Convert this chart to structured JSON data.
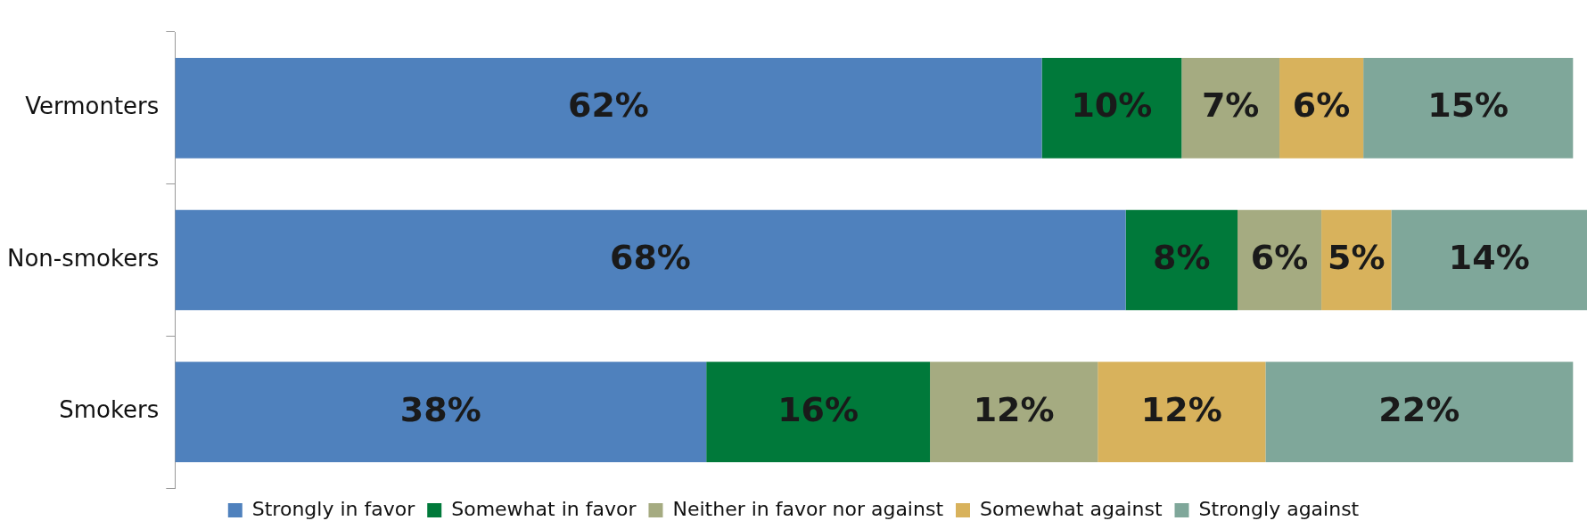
{
  "chart_data": {
    "type": "bar",
    "orientation": "horizontal",
    "stacked": true,
    "legend": "bottom",
    "grid": false,
    "tick_labels": "y",
    "categories": [
      "Vermonters",
      "Non-smokers",
      "Smokers"
    ],
    "series": [
      {
        "name": "Strongly in favor",
        "color": "#4f81bd",
        "values": [
          62,
          68,
          38
        ],
        "value_labels": [
          "62%",
          "68%",
          "38%"
        ]
      },
      {
        "name": "Somewhat in favor",
        "color": "#00793a",
        "values": [
          10,
          8,
          16
        ],
        "value_labels": [
          "10%",
          "8%",
          "16%"
        ]
      },
      {
        "name": "Neither in favor nor against",
        "color": "#a5ab81",
        "values": [
          7,
          6,
          12
        ],
        "value_labels": [
          "7%",
          "6%",
          "12%"
        ]
      },
      {
        "name": "Somewhat against",
        "color": "#d8b25c",
        "values": [
          6,
          5,
          12
        ],
        "value_labels": [
          "6%",
          "5%",
          "12%"
        ]
      },
      {
        "name": "Strongly against",
        "color": "#7fa79a",
        "values": [
          15,
          14,
          22
        ],
        "value_labels": [
          "15%",
          "14%",
          "22%"
        ]
      }
    ]
  }
}
